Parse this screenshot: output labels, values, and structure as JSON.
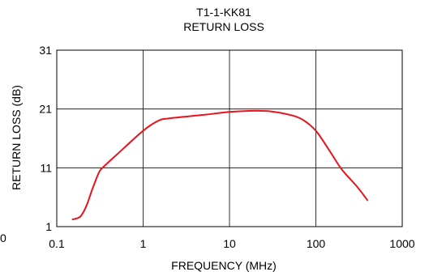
{
  "chart_data": {
    "type": "line",
    "title": "T1-1-KK81",
    "subtitle": "RETURN LOSS",
    "xlabel": "FREQUENCY (MHz)",
    "ylabel": "RETURN LOSS (dB)",
    "x_scale": "log",
    "xlim": [
      0.1,
      1000
    ],
    "ylim": [
      1,
      31
    ],
    "x_ticks": [
      "0.1",
      "1",
      "10",
      "100",
      "1000"
    ],
    "y_ticks": [
      "1",
      "11",
      "21",
      "31"
    ],
    "stray_label": "0",
    "grid": true,
    "legend": "none",
    "series": [
      {
        "color": "#e8141c",
        "x": [
          0.15,
          0.17,
          0.19,
          0.22,
          0.26,
          0.31,
          0.35,
          0.5,
          1.0,
          1.5,
          2.0,
          5.0,
          10,
          20,
          30,
          50,
          70,
          100,
          150,
          200,
          300,
          400
        ],
        "y": [
          2.2,
          2.4,
          2.8,
          4.5,
          7.5,
          10.3,
          11.2,
          13.3,
          17.3,
          19.0,
          19.4,
          20.0,
          20.5,
          20.7,
          20.6,
          20.0,
          19.2,
          17.3,
          13.5,
          10.7,
          7.8,
          5.4
        ]
      }
    ]
  }
}
